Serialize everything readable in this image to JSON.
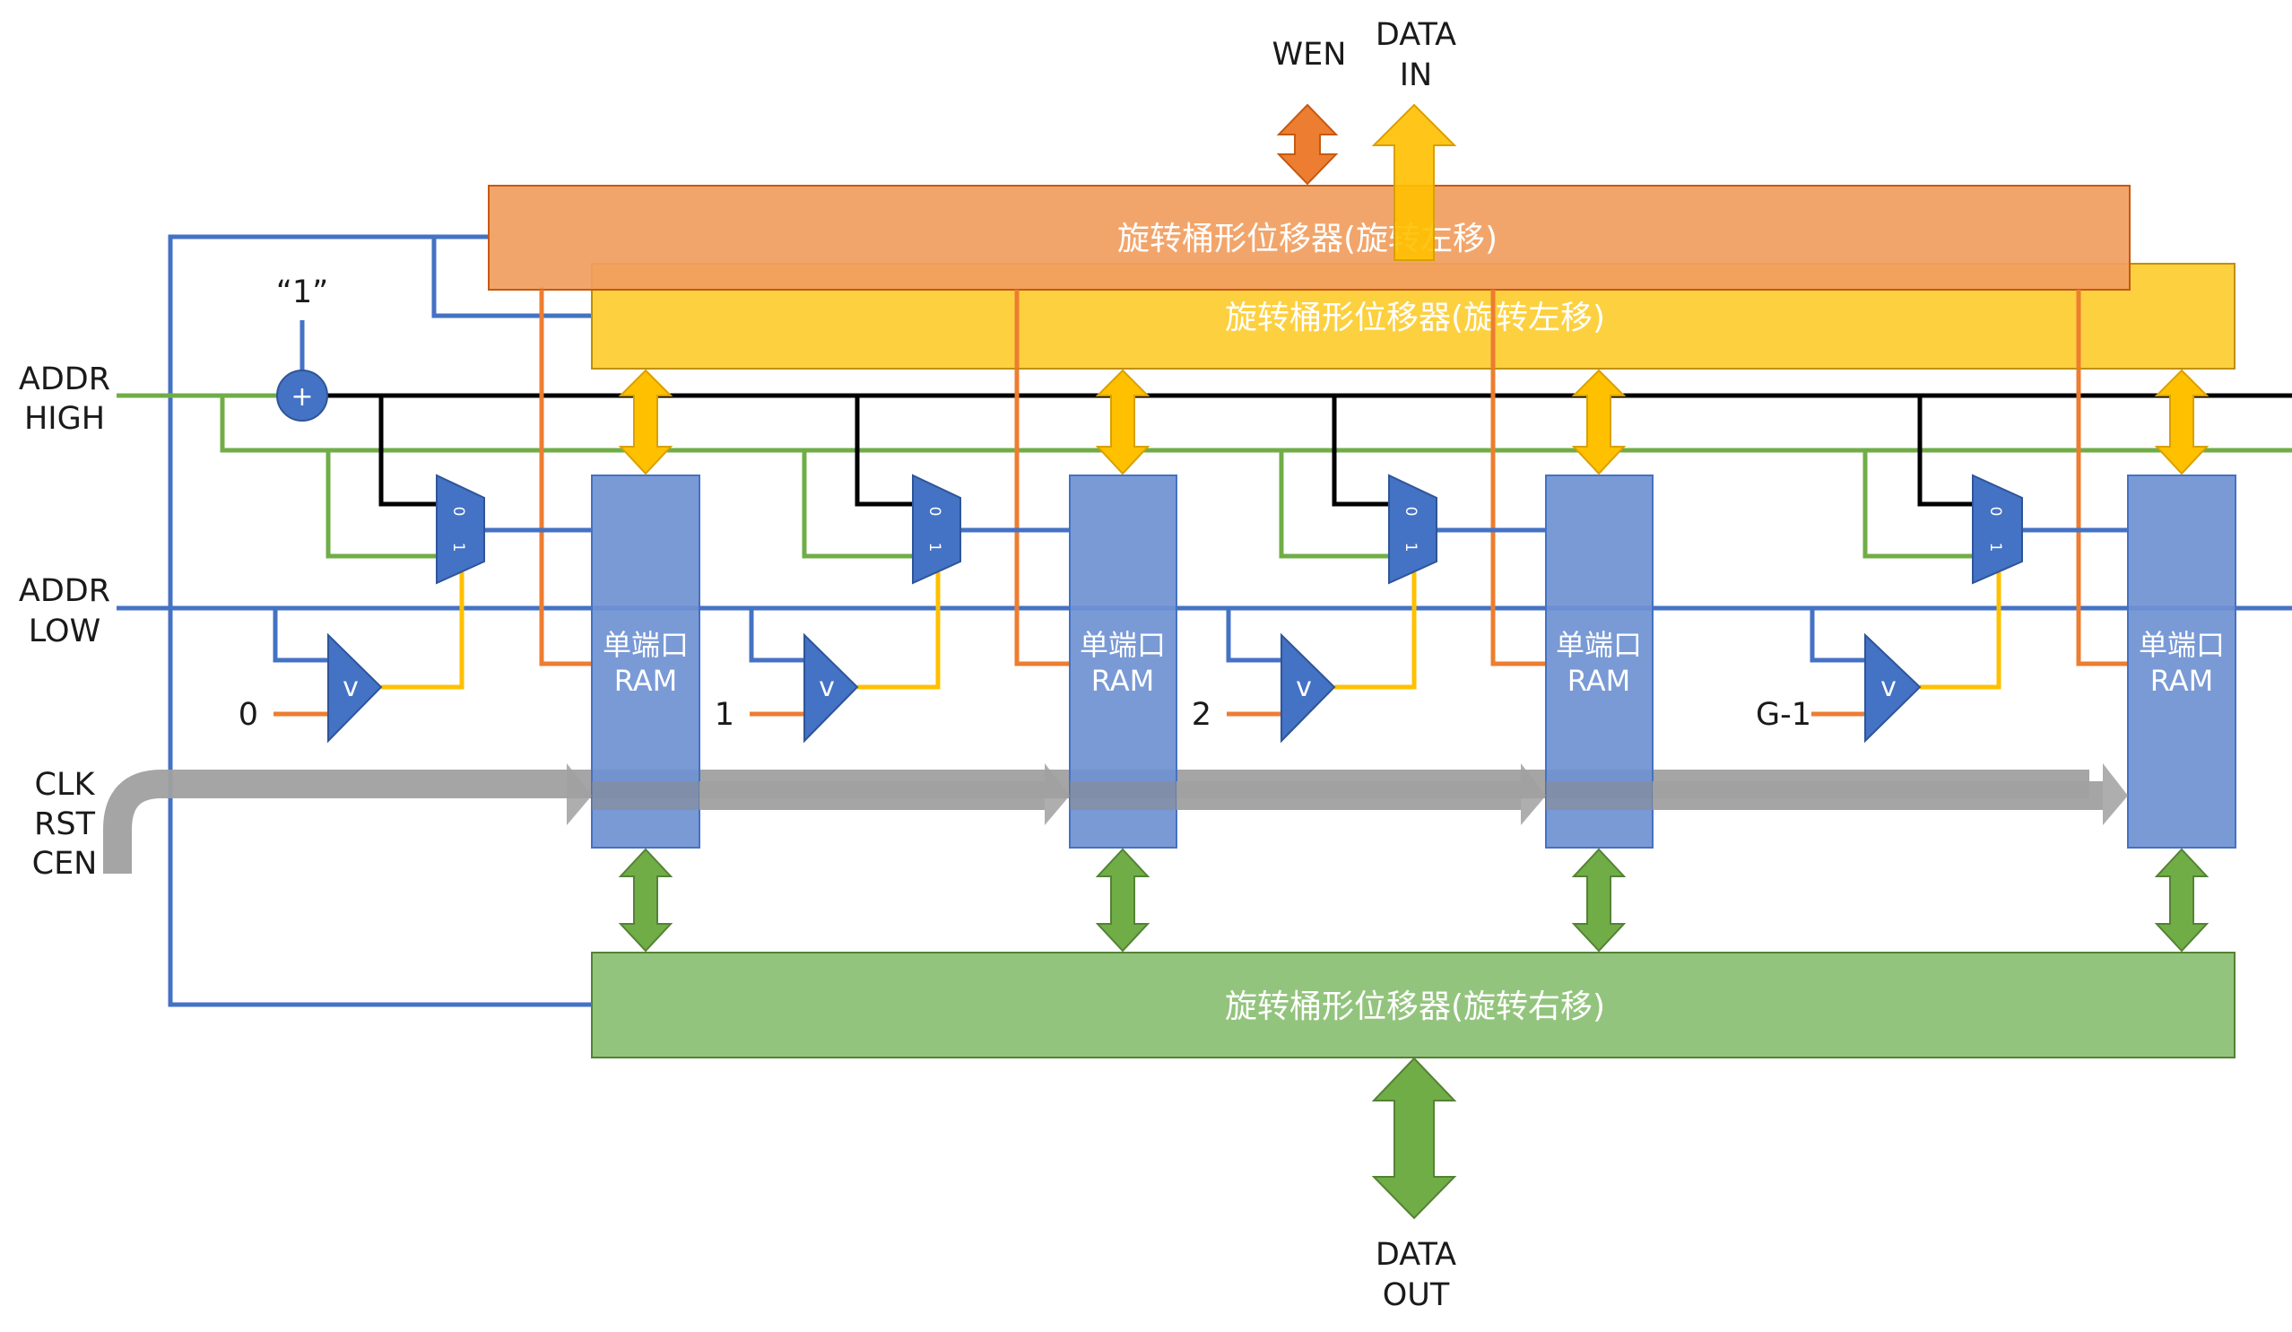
{
  "labels": {
    "wen": "WEN",
    "data_in_1": "DATA",
    "data_in_2": "IN",
    "data_out_1": "DATA",
    "data_out_2": "OUT",
    "addr_high_1": "ADDR",
    "addr_high_2": "HIGH",
    "addr_low_1": "ADDR",
    "addr_low_2": "LOW",
    "clk": "CLK",
    "rst": "RST",
    "cen": "CEN",
    "const_one": "“1”",
    "adder": "+"
  },
  "shifters": {
    "top_orange": "旋转桶形位移器(旋转左移)",
    "top_yellow": "旋转桶形位移器(旋转左移)",
    "bottom_green": "旋转桶形位移器(旋转右移)"
  },
  "banks": [
    {
      "ram_line1": "单端口",
      "ram_line2": "RAM",
      "index": "0",
      "mux_in0": "0",
      "mux_in1": "1",
      "cmp": "v"
    },
    {
      "ram_line1": "单端口",
      "ram_line2": "RAM",
      "index": "1",
      "mux_in0": "0",
      "mux_in1": "1",
      "cmp": "v"
    },
    {
      "ram_line1": "单端口",
      "ram_line2": "RAM",
      "index": "2",
      "mux_in0": "0",
      "mux_in1": "1",
      "cmp": "v"
    },
    {
      "ram_line1": "单端口",
      "ram_line2": "RAM",
      "index": "G-1",
      "mux_in0": "0",
      "mux_in1": "1",
      "cmp": "v"
    }
  ],
  "colors": {
    "orange_shifter": "#F19E60",
    "yellow_shifter": "#FDD03F",
    "green_shifter": "#93C47D",
    "ram": "#6F91D2",
    "blue": "#4472C4",
    "orange_wire": "#ED7D31",
    "yellow_arrow": "#FFC000",
    "green_wire": "#70AD47",
    "gray_bus": "#A0A0A0",
    "black": "#000000"
  }
}
